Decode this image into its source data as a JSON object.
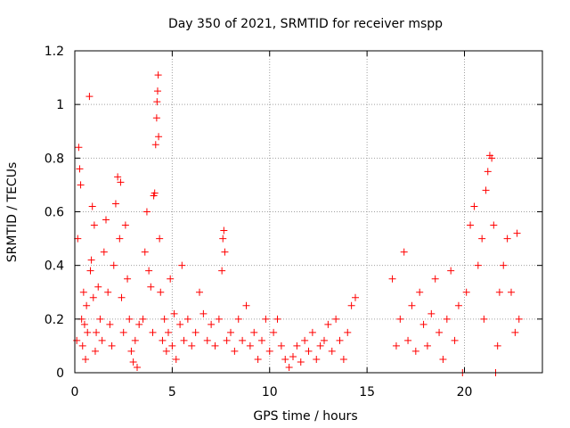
{
  "chart_data": {
    "type": "scatter",
    "title": "Day 350 of 2021, SRMTID for receiver mspp",
    "xlabel": "GPS time / hours",
    "ylabel": "SRMTID / TECUs",
    "xlim": [
      0,
      24
    ],
    "ylim": [
      0,
      1.2
    ],
    "x_ticks": [
      0,
      5,
      10,
      15,
      20
    ],
    "x_tick_labels": [
      "0",
      "5",
      "10",
      "15",
      "20"
    ],
    "y_ticks": [
      0,
      0.2,
      0.4,
      0.6,
      0.8,
      1.0,
      1.2
    ],
    "y_tick_labels": [
      "0",
      "0.2",
      "0.4",
      "0.6",
      "0.8",
      "1",
      "1.2"
    ],
    "grid": true,
    "marker": "plus",
    "color": "#ff0000",
    "series": [
      {
        "name": "SRMTID",
        "points": [
          [
            0.1,
            0.12
          ],
          [
            0.15,
            0.5
          ],
          [
            0.2,
            0.84
          ],
          [
            0.25,
            0.76
          ],
          [
            0.3,
            0.7
          ],
          [
            0.35,
            0.2
          ],
          [
            0.4,
            0.1
          ],
          [
            0.45,
            0.3
          ],
          [
            0.5,
            0.18
          ],
          [
            0.55,
            0.05
          ],
          [
            0.6,
            0.25
          ],
          [
            0.65,
            0.15
          ],
          [
            0.75,
            1.03
          ],
          [
            0.8,
            0.38
          ],
          [
            0.85,
            0.42
          ],
          [
            0.9,
            0.62
          ],
          [
            0.95,
            0.28
          ],
          [
            1.0,
            0.55
          ],
          [
            1.05,
            0.08
          ],
          [
            1.1,
            0.15
          ],
          [
            1.2,
            0.32
          ],
          [
            1.3,
            0.2
          ],
          [
            1.4,
            0.12
          ],
          [
            1.5,
            0.45
          ],
          [
            1.6,
            0.57
          ],
          [
            1.7,
            0.3
          ],
          [
            1.8,
            0.18
          ],
          [
            1.9,
            0.1
          ],
          [
            2.0,
            0.4
          ],
          [
            2.1,
            0.63
          ],
          [
            2.2,
            0.73
          ],
          [
            2.3,
            0.5
          ],
          [
            2.35,
            0.71
          ],
          [
            2.4,
            0.28
          ],
          [
            2.5,
            0.15
          ],
          [
            2.6,
            0.55
          ],
          [
            2.7,
            0.35
          ],
          [
            2.8,
            0.2
          ],
          [
            2.9,
            0.08
          ],
          [
            3.0,
            0.04
          ],
          [
            3.1,
            0.12
          ],
          [
            3.2,
            0.02
          ],
          [
            3.3,
            0.18
          ],
          [
            3.5,
            0.2
          ],
          [
            3.6,
            0.45
          ],
          [
            3.7,
            0.6
          ],
          [
            3.8,
            0.38
          ],
          [
            3.9,
            0.32
          ],
          [
            4.0,
            0.15
          ],
          [
            4.05,
            0.66
          ],
          [
            4.1,
            0.67
          ],
          [
            4.15,
            0.85
          ],
          [
            4.2,
            0.95
          ],
          [
            4.22,
            1.01
          ],
          [
            4.25,
            1.05
          ],
          [
            4.28,
            1.11
          ],
          [
            4.3,
            0.88
          ],
          [
            4.35,
            0.5
          ],
          [
            4.4,
            0.3
          ],
          [
            4.5,
            0.12
          ],
          [
            4.6,
            0.2
          ],
          [
            4.7,
            0.08
          ],
          [
            4.8,
            0.15
          ],
          [
            4.9,
            0.35
          ],
          [
            5.0,
            0.1
          ],
          [
            5.1,
            0.22
          ],
          [
            5.2,
            0.05
          ],
          [
            5.4,
            0.18
          ],
          [
            5.5,
            0.4
          ],
          [
            5.6,
            0.12
          ],
          [
            5.8,
            0.2
          ],
          [
            6.0,
            0.1
          ],
          [
            6.2,
            0.15
          ],
          [
            6.4,
            0.3
          ],
          [
            6.6,
            0.22
          ],
          [
            6.8,
            0.12
          ],
          [
            7.0,
            0.18
          ],
          [
            7.2,
            0.1
          ],
          [
            7.4,
            0.2
          ],
          [
            7.55,
            0.38
          ],
          [
            7.6,
            0.5
          ],
          [
            7.65,
            0.53
          ],
          [
            7.7,
            0.45
          ],
          [
            7.8,
            0.12
          ],
          [
            8.0,
            0.15
          ],
          [
            8.2,
            0.08
          ],
          [
            8.4,
            0.2
          ],
          [
            8.6,
            0.12
          ],
          [
            8.8,
            0.25
          ],
          [
            9.0,
            0.1
          ],
          [
            9.2,
            0.15
          ],
          [
            9.4,
            0.05
          ],
          [
            9.6,
            0.12
          ],
          [
            9.8,
            0.2
          ],
          [
            10.0,
            0.08
          ],
          [
            10.2,
            0.15
          ],
          [
            10.4,
            0.2
          ],
          [
            10.6,
            0.1
          ],
          [
            10.8,
            0.05
          ],
          [
            11.0,
            0.02
          ],
          [
            11.2,
            0.06
          ],
          [
            11.4,
            0.1
          ],
          [
            11.6,
            0.04
          ],
          [
            11.8,
            0.12
          ],
          [
            12.0,
            0.08
          ],
          [
            12.2,
            0.15
          ],
          [
            12.4,
            0.05
          ],
          [
            12.6,
            0.1
          ],
          [
            12.8,
            0.12
          ],
          [
            13.0,
            0.18
          ],
          [
            13.2,
            0.08
          ],
          [
            13.4,
            0.2
          ],
          [
            13.6,
            0.12
          ],
          [
            13.8,
            0.05
          ],
          [
            14.0,
            0.15
          ],
          [
            14.2,
            0.25
          ],
          [
            14.4,
            0.28
          ],
          [
            16.3,
            0.35
          ],
          [
            16.5,
            0.1
          ],
          [
            16.7,
            0.2
          ],
          [
            16.9,
            0.45
          ],
          [
            17.1,
            0.12
          ],
          [
            17.3,
            0.25
          ],
          [
            17.5,
            0.08
          ],
          [
            17.7,
            0.3
          ],
          [
            17.9,
            0.18
          ],
          [
            18.1,
            0.1
          ],
          [
            18.3,
            0.22
          ],
          [
            18.5,
            0.35
          ],
          [
            18.7,
            0.15
          ],
          [
            18.9,
            0.05
          ],
          [
            19.1,
            0.2
          ],
          [
            19.3,
            0.38
          ],
          [
            19.5,
            0.12
          ],
          [
            19.7,
            0.25
          ],
          [
            19.9,
            0.0
          ],
          [
            20.1,
            0.3
          ],
          [
            20.3,
            0.55
          ],
          [
            20.5,
            0.62
          ],
          [
            20.7,
            0.4
          ],
          [
            20.9,
            0.5
          ],
          [
            21.0,
            0.2
          ],
          [
            21.1,
            0.68
          ],
          [
            21.2,
            0.75
          ],
          [
            21.3,
            0.81
          ],
          [
            21.4,
            0.8
          ],
          [
            21.5,
            0.55
          ],
          [
            21.6,
            0.0
          ],
          [
            21.7,
            0.1
          ],
          [
            21.8,
            0.3
          ],
          [
            22.0,
            0.4
          ],
          [
            22.2,
            0.5
          ],
          [
            22.4,
            0.3
          ],
          [
            22.6,
            0.15
          ],
          [
            22.7,
            0.52
          ],
          [
            22.8,
            0.2
          ]
        ]
      }
    ]
  }
}
